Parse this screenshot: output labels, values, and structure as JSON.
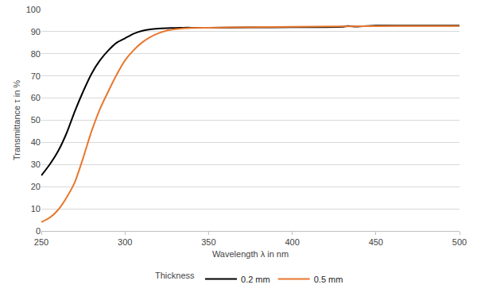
{
  "chart_data": {
    "type": "line",
    "x_label": "Wavelength λ in nm",
    "y_label": "Transmittance τ in %",
    "legend_title": "Thickness",
    "x": [
      250,
      255,
      260,
      265,
      270,
      275,
      280,
      285,
      290,
      295,
      300,
      305,
      310,
      315,
      320,
      325,
      330,
      335,
      340,
      350,
      375,
      400,
      430,
      433,
      437,
      445,
      450,
      475,
      500
    ],
    "series": [
      {
        "name": "0.2 mm",
        "color": "#000000",
        "values": [
          25,
          30,
          36,
          44,
          54,
          63,
          71,
          77,
          81.5,
          85,
          87,
          89,
          90.3,
          91,
          91.4,
          91.6,
          91.7,
          91.8,
          91.8,
          91.8,
          91.9,
          92,
          92.2,
          92.6,
          92.3,
          92.6,
          92.7,
          92.7,
          92.7
        ]
      },
      {
        "name": "0.5 mm",
        "color": "#e8772e",
        "values": [
          4,
          6,
          9.5,
          15,
          22,
          33,
          45,
          55,
          63,
          70.5,
          77,
          81.5,
          85,
          87.5,
          89.3,
          90.5,
          91.1,
          91.5,
          91.7,
          91.8,
          92,
          92.2,
          92.4,
          92.4,
          92.4,
          92.5,
          92.5,
          92.6,
          92.6
        ]
      }
    ],
    "xlim": [
      250,
      500
    ],
    "xticks": [
      250,
      300,
      350,
      400,
      450,
      500
    ],
    "ylim": [
      0,
      100
    ],
    "yticks": [
      0,
      10,
      20,
      30,
      40,
      50,
      60,
      70,
      80,
      90,
      100
    ],
    "grid": true,
    "legend": "bottom"
  }
}
